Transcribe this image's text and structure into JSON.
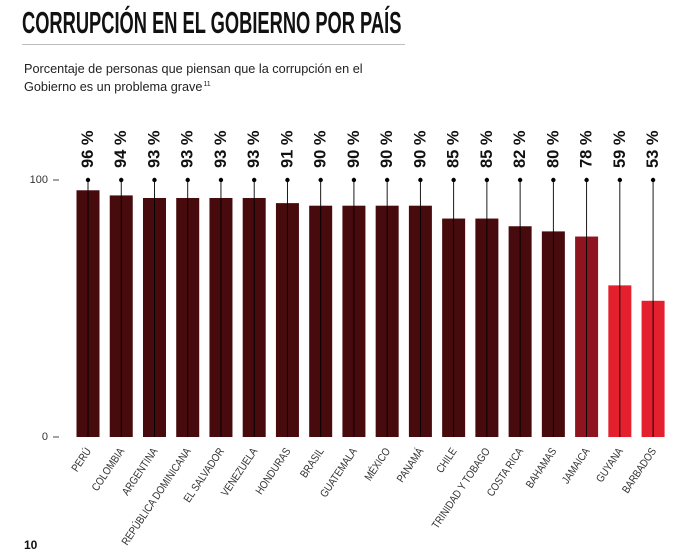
{
  "title": "CORRUPCIÓN EN EL GOBIERNO POR PAÍS",
  "subtitle": {
    "line1": "Porcentaje de personas que piensan que la corrupción en el",
    "line2": "Gobierno es un problema grave",
    "footnote_ref": "11"
  },
  "page_number": "10",
  "chart_data": {
    "type": "bar",
    "categories": [
      "PERÚ",
      "COLOMBIA",
      "ARGENTINA",
      "REPÚBLICA DOMINICANA",
      "EL SALVADOR",
      "VENEZUELA",
      "HONDURAS",
      "BRASIL",
      "GUATEMALA",
      "MÉXICO",
      "PANAMÁ",
      "CHILE",
      "TRINIDAD Y TOBAGO",
      "COSTA RICA",
      "BAHAMAS",
      "JAMAICA",
      "GUYANA",
      "BARBADOS"
    ],
    "values": [
      96,
      94,
      93,
      93,
      93,
      93,
      91,
      90,
      90,
      90,
      90,
      85,
      85,
      82,
      80,
      78,
      59,
      53
    ],
    "data_labels": [
      "96 %",
      "94 %",
      "93 %",
      "93 %",
      "93 %",
      "93 %",
      "91 %",
      "90 %",
      "90 %",
      "90 %",
      "90 %",
      "85 %",
      "85 %",
      "82 %",
      "80 %",
      "78 %",
      "59 %",
      "53 %"
    ],
    "ylim": [
      0,
      100
    ],
    "yticks": [
      100,
      0
    ],
    "grid": false,
    "legend": "none",
    "bar_colors": [
      "#470a0d",
      "#470a0d",
      "#470a0d",
      "#470a0d",
      "#470a0d",
      "#470a0d",
      "#470a0d",
      "#470a0d",
      "#470a0d",
      "#470a0d",
      "#470a0d",
      "#470a0d",
      "#470a0d",
      "#470a0d",
      "#470a0d",
      "#8e1520",
      "#e4202e",
      "#e4202e"
    ],
    "marker_color": "#000000"
  }
}
